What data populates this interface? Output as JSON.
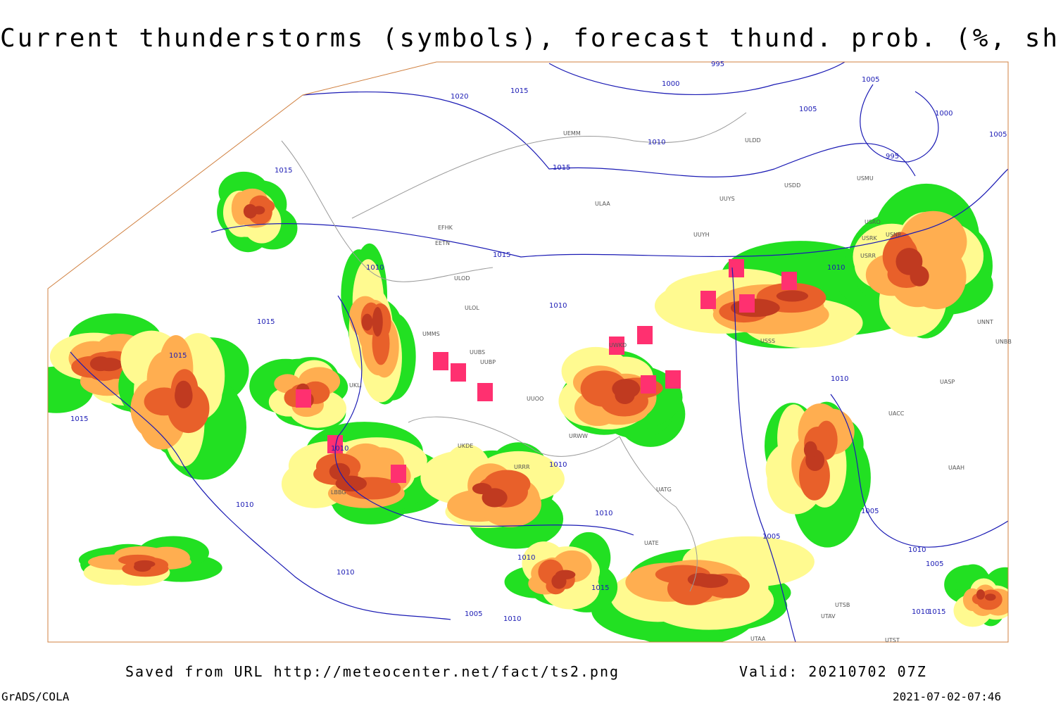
{
  "title": "Current thunderstorms (symbols), forecast thund. prob. (%, shaded)",
  "footer": {
    "source": "Saved from URL http://meteocenter.net/fact/ts2.png",
    "valid": "Valid: 20210702 07Z",
    "software": "GrADS/COLA",
    "timestamp": "2021-07-02-07:46"
  },
  "isobar_labels": [
    "1020",
    "1015",
    "995",
    "1000",
    "1005",
    "1010",
    "1015",
    "1000",
    "995",
    "1005",
    "1015",
    "1015",
    "1010",
    "1015",
    "1015",
    "1015",
    "1010",
    "1010",
    "1010",
    "1010",
    "1010",
    "1010",
    "1005",
    "1005",
    "1010",
    "1005",
    "1010",
    "1015",
    "1005",
    "1010",
    "1010",
    "1010",
    "1015",
    "1005",
    "1010"
  ],
  "station_labels": [
    "ULDD",
    "USDD",
    "ULAA",
    "UUYS",
    "UUYH",
    "USRK",
    "USRR",
    "USNR",
    "USRO",
    "USMU",
    "UNNT",
    "UNBB",
    "UASP",
    "UACC",
    "UAAH",
    "UATG",
    "UATE",
    "UTAA",
    "UTAV",
    "UTSB",
    "UTST",
    "URWW",
    "UKDE",
    "URRR",
    "UUOO",
    "UUBP",
    "UUBS",
    "UMMS",
    "ULOL",
    "EFHK",
    "EETN",
    "UKLI",
    "LBBG",
    "UEMM",
    "ULOD",
    "UWKD",
    "USSS"
  ]
}
